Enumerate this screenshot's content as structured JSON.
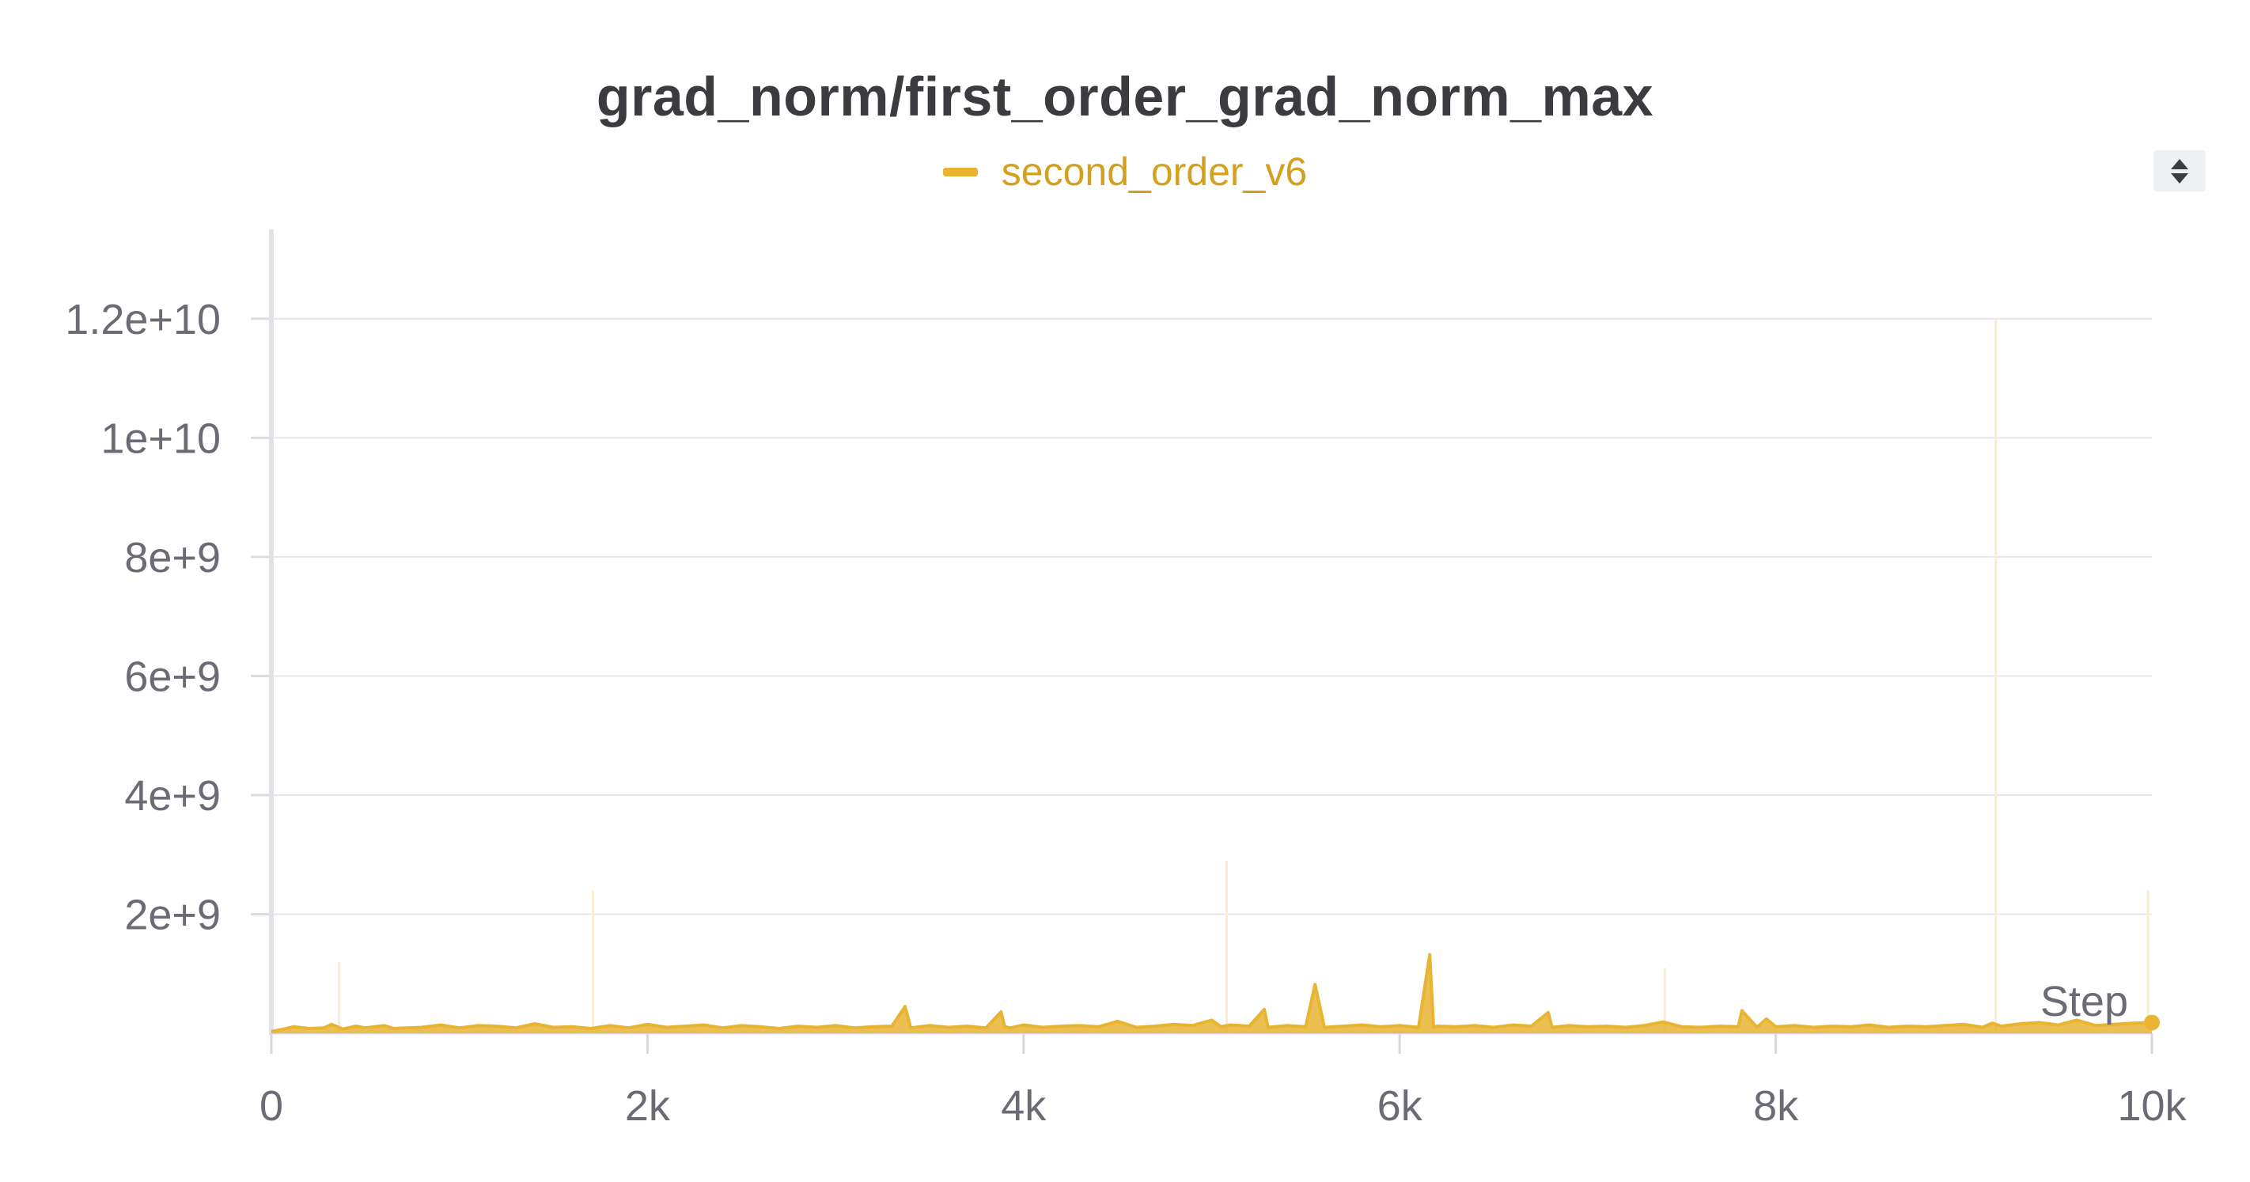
{
  "chart_data": {
    "type": "line",
    "title": "grad_norm/first_order_grad_norm_max",
    "xlabel": "Step",
    "ylabel": "",
    "xlim": [
      0,
      10000
    ],
    "ylim": [
      0,
      13500000000.0
    ],
    "grid": true,
    "legend_position": "top-center",
    "x_ticks": [
      {
        "value": 0,
        "label": "0"
      },
      {
        "value": 2000,
        "label": "2k"
      },
      {
        "value": 4000,
        "label": "4k"
      },
      {
        "value": 6000,
        "label": "6k"
      },
      {
        "value": 8000,
        "label": "8k"
      },
      {
        "value": 10000,
        "label": "10k"
      }
    ],
    "y_ticks": [
      {
        "value": 2000000000.0,
        "label": "2e+9"
      },
      {
        "value": 4000000000.0,
        "label": "4e+9"
      },
      {
        "value": 6000000000.0,
        "label": "6e+9"
      },
      {
        "value": 8000000000.0,
        "label": "8e+9"
      },
      {
        "value": 10000000000.0,
        "label": "1e+10"
      },
      {
        "value": 12000000000.0,
        "label": "1.2e+10"
      }
    ],
    "series": [
      {
        "name": "second_order_v6",
        "color": "#e8b432",
        "baseline": 80000000.0,
        "x": [
          0,
          50,
          120,
          200,
          280,
          320,
          380,
          450,
          500,
          600,
          650,
          800,
          900,
          1000,
          1100,
          1200,
          1300,
          1400,
          1500,
          1600,
          1700,
          1800,
          1900,
          2000,
          2100,
          2200,
          2300,
          2400,
          2500,
          2600,
          2700,
          2800,
          2900,
          3000,
          3100,
          3200,
          3300,
          3370,
          3400,
          3450,
          3500,
          3600,
          3700,
          3800,
          3880,
          3900,
          3930,
          4000,
          4100,
          4200,
          4300,
          4400,
          4500,
          4600,
          4700,
          4800,
          4900,
          5000,
          5050,
          5100,
          5200,
          5280,
          5300,
          5400,
          5500,
          5550,
          5600,
          5700,
          5800,
          5900,
          6000,
          6100,
          6160,
          6180,
          6200,
          6300,
          6400,
          6500,
          6600,
          6700,
          6790,
          6810,
          6900,
          7000,
          7100,
          7200,
          7300,
          7400,
          7500,
          7600,
          7700,
          7800,
          7820,
          7900,
          7950,
          8000,
          8100,
          8200,
          8300,
          8400,
          8500,
          8600,
          8700,
          8800,
          8900,
          9000,
          9100,
          9150,
          9200,
          9300,
          9400,
          9500,
          9600,
          9700,
          9800,
          9900,
          10000
        ],
        "y": [
          30000000.0,
          60000000.0,
          110000000.0,
          80000000.0,
          90000000.0,
          150000000.0,
          70000000.0,
          120000000.0,
          90000000.0,
          130000000.0,
          80000000.0,
          100000000.0,
          140000000.0,
          90000000.0,
          130000000.0,
          120000000.0,
          90000000.0,
          160000000.0,
          100000000.0,
          110000000.0,
          80000000.0,
          130000000.0,
          90000000.0,
          150000000.0,
          100000000.0,
          120000000.0,
          140000000.0,
          90000000.0,
          130000000.0,
          110000000.0,
          80000000.0,
          120000000.0,
          100000000.0,
          130000000.0,
          90000000.0,
          110000000.0,
          120000000.0,
          450000000.0,
          90000000.0,
          110000000.0,
          130000000.0,
          100000000.0,
          120000000.0,
          90000000.0,
          360000000.0,
          110000000.0,
          90000000.0,
          140000000.0,
          100000000.0,
          120000000.0,
          130000000.0,
          110000000.0,
          200000000.0,
          100000000.0,
          120000000.0,
          150000000.0,
          130000000.0,
          220000000.0,
          110000000.0,
          140000000.0,
          120000000.0,
          400000000.0,
          100000000.0,
          130000000.0,
          110000000.0,
          820000000.0,
          100000000.0,
          120000000.0,
          140000000.0,
          110000000.0,
          130000000.0,
          100000000.0,
          1320000000.0,
          100000000.0,
          120000000.0,
          110000000.0,
          130000000.0,
          100000000.0,
          140000000.0,
          120000000.0,
          350000000.0,
          100000000.0,
          130000000.0,
          110000000.0,
          120000000.0,
          100000000.0,
          130000000.0,
          190000000.0,
          110000000.0,
          100000000.0,
          120000000.0,
          110000000.0,
          380000000.0,
          100000000.0,
          240000000.0,
          110000000.0,
          130000000.0,
          100000000.0,
          120000000.0,
          110000000.0,
          140000000.0,
          100000000.0,
          120000000.0,
          110000000.0,
          130000000.0,
          150000000.0,
          100000000.0,
          170000000.0,
          120000000.0,
          160000000.0,
          180000000.0,
          140000000.0,
          220000000.0,
          130000000.0,
          150000000.0,
          170000000.0,
          180000000.0
        ]
      }
    ]
  }
}
